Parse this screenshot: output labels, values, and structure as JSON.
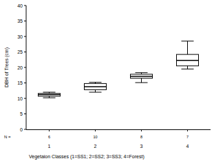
{
  "chart_data": {
    "type": "box",
    "y_label": "DBH of Trees (cm)",
    "x_label": "Vegetaion Classes (1=SS1; 2=SS2; 3=SS3; 4=Forest)",
    "categories": [
      "1",
      "2",
      "3",
      "4"
    ],
    "n_label": "N =",
    "n": [
      6,
      10,
      8,
      7
    ],
    "min": [
      10.2,
      12.0,
      15.1,
      19.5
    ],
    "q1": [
      10.7,
      12.8,
      16.5,
      20.5
    ],
    "median": [
      11.2,
      13.8,
      17.1,
      22.3
    ],
    "q3": [
      11.6,
      14.8,
      17.8,
      24.2
    ],
    "max": [
      12.0,
      15.2,
      18.3,
      28.5
    ],
    "color": "#ffffff",
    "ylim": [
      0,
      40
    ],
    "yticks": [
      0,
      5,
      10,
      15,
      20,
      25,
      30,
      35,
      40
    ],
    "grid": false
  }
}
